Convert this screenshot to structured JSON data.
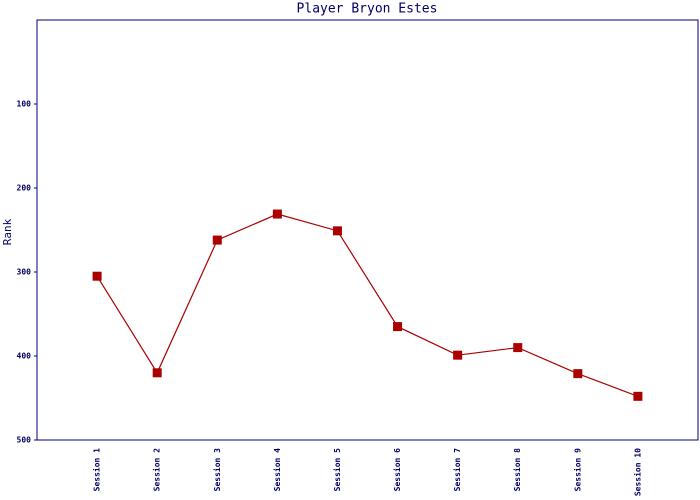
{
  "chart_data": {
    "type": "line",
    "title": "Player Bryon Estes",
    "y_label": "Rank",
    "categories": [
      "Session 1",
      "Session 2",
      "Session 3",
      "Session 4",
      "Session 5",
      "Session 6",
      "Session 7",
      "Session 8",
      "Session 9",
      "Session 10"
    ],
    "series": [
      {
        "name": "Rank",
        "color": "#aa0000",
        "values": [
          305,
          420,
          262,
          231,
          251,
          365,
          399,
          390,
          421,
          448
        ]
      }
    ],
    "ylim": [
      0,
      500
    ],
    "y_inverted": true,
    "yticks": [
      100,
      200,
      300,
      400,
      500
    ],
    "grid": false
  }
}
